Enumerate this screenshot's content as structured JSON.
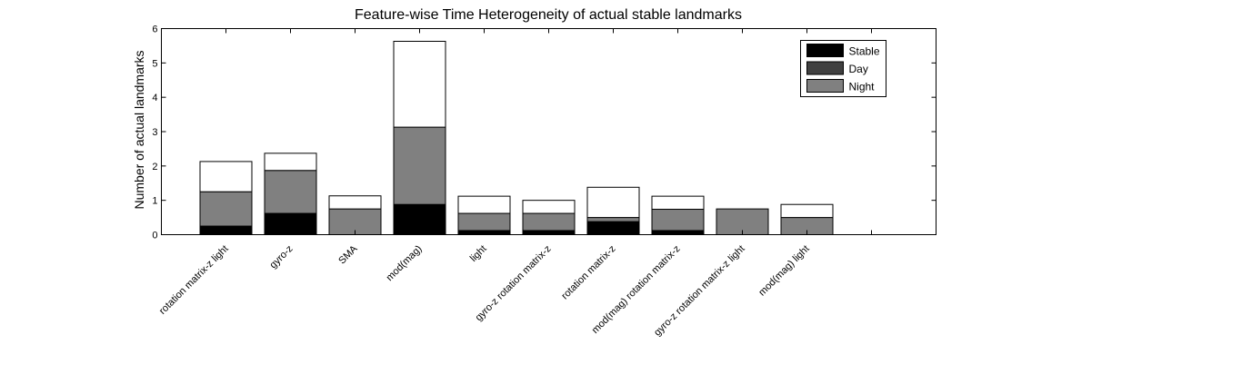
{
  "chart_data": {
    "type": "bar",
    "stacked": true,
    "title": "Feature-wise Time Heterogeneity of actual stable landmarks",
    "xlabel": "",
    "ylabel": "Number of actual landmarks",
    "ylim": [
      0,
      6
    ],
    "yticks": [
      "0",
      "1",
      "2",
      "3",
      "4",
      "5",
      "6"
    ],
    "x_slots": 12,
    "categories": [
      "rotation matrix-z  light",
      "gyro-z",
      "SMA",
      "mod(mag)",
      "light",
      "gyro-z  rotation matrix-z",
      "rotation matrix-z",
      "mod(mag)  rotation matrix-z",
      "gyro-z  rotation matrix-z  light",
      "mod(mag)  light"
    ],
    "series": [
      {
        "name": "Stable",
        "color": "#000000",
        "values": [
          0.25,
          0.62,
          0.0,
          0.88,
          0.12,
          0.12,
          0.38,
          0.12,
          0.0,
          0.0
        ]
      },
      {
        "name": "Day",
        "color": "#404040",
        "values": [
          0.0,
          0.0,
          0.0,
          0.0,
          0.0,
          0.0,
          0.0,
          0.0,
          0.0,
          0.0
        ]
      },
      {
        "name": "Night",
        "color": "#808080",
        "values": [
          1.0,
          1.25,
          0.75,
          2.25,
          0.5,
          0.5,
          0.12,
          0.62,
          0.75,
          0.5
        ]
      },
      {
        "name": "",
        "color": "#ffffff",
        "values": [
          0.88,
          0.5,
          0.38,
          2.5,
          0.5,
          0.38,
          0.88,
          0.38,
          0.0,
          0.38
        ]
      }
    ],
    "legend_position": "top-right",
    "grid": false
  }
}
